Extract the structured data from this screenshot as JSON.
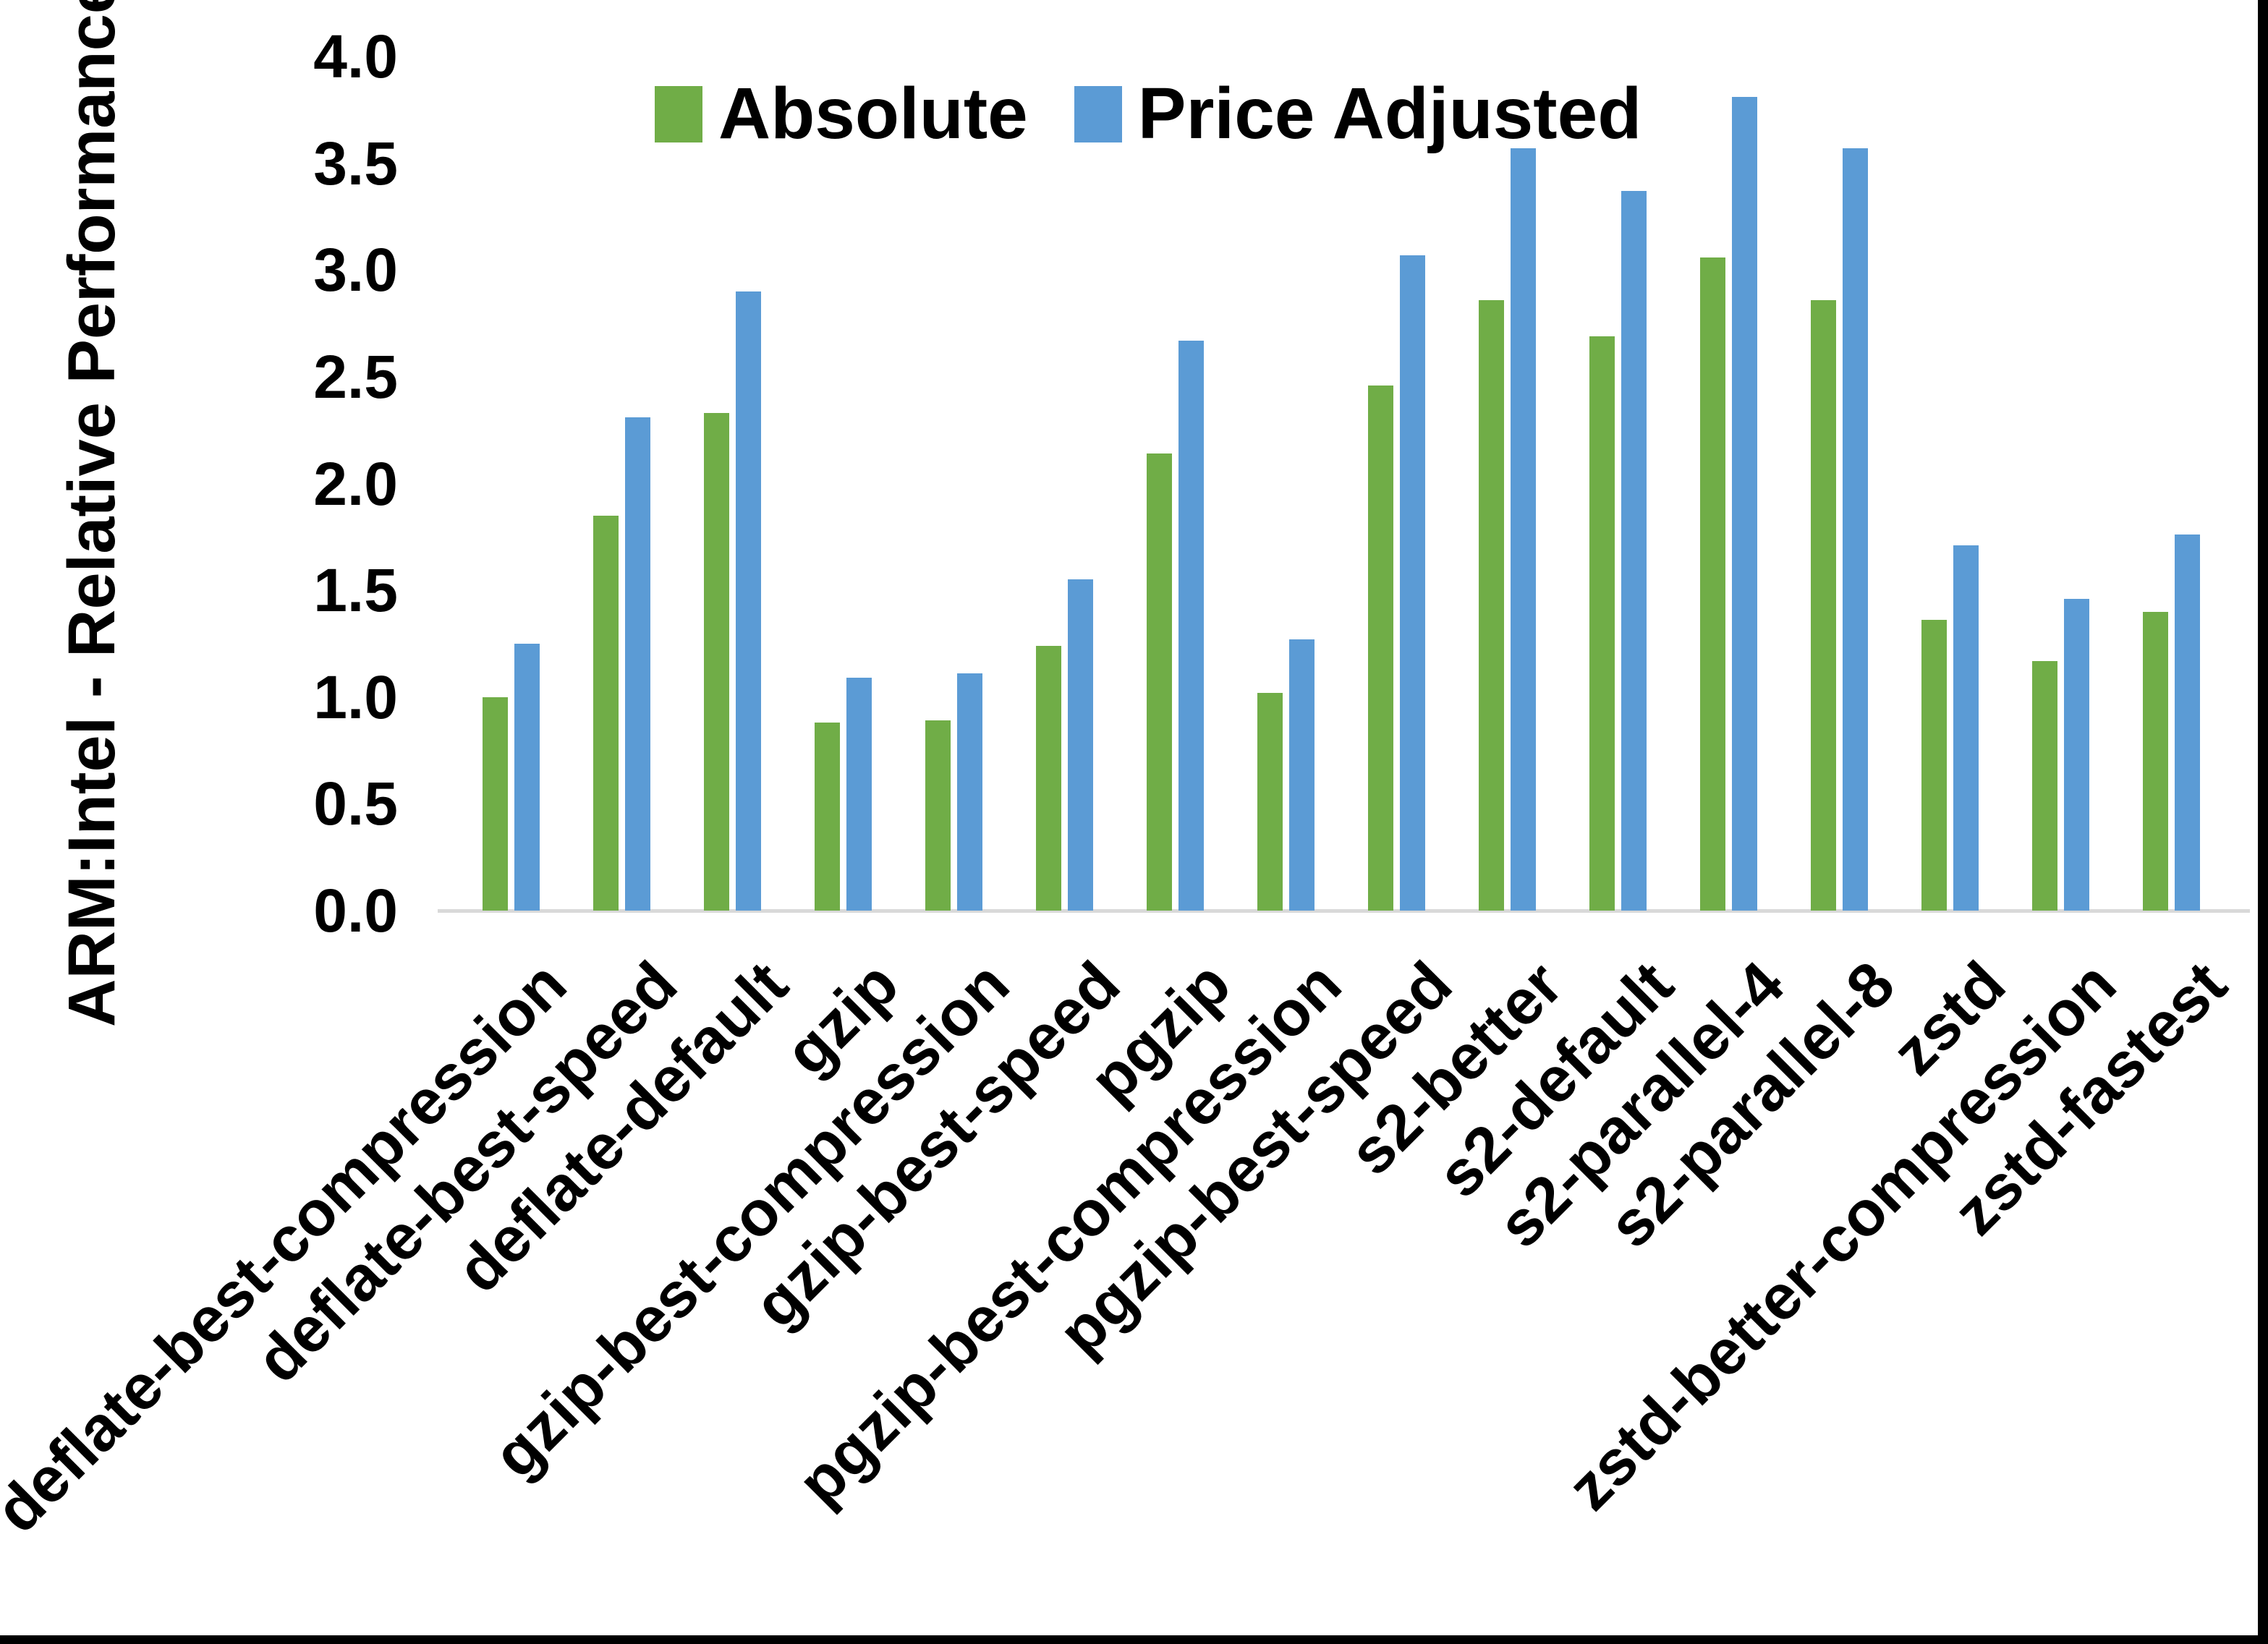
{
  "y_axis": {
    "title": "ARM:Intel - Relative Performance",
    "tick_labels": [
      "0.0",
      "0.5",
      "1.0",
      "1.5",
      "2.0",
      "2.5",
      "3.0",
      "3.5",
      "4.0"
    ],
    "min": 0,
    "max": 4
  },
  "legend": {
    "items": [
      {
        "name": "Absolute",
        "color": "#70AD47"
      },
      {
        "name": "Price Adjusted",
        "color": "#5B9BD5"
      }
    ]
  },
  "colors": {
    "absolute_green": "#70AD47",
    "price_adjusted_blue": "#5B9BD5",
    "axis_line_gray": "#D9D9D9",
    "frame_black": "#000000"
  },
  "chart_data": {
    "type": "bar",
    "title": "",
    "xlabel": "",
    "ylabel": "ARM:Intel - Relative Performance",
    "ylim": [
      0,
      4
    ],
    "ytick_step": 0.5,
    "grid": false,
    "legend_position": "top-center",
    "categories": [
      "deflate-best-compression",
      "deflate-best-speed",
      "deflate-default",
      "gzip",
      "gzip-best-compression",
      "gzip-best-speed",
      "pgzip",
      "pgzip-best-compression",
      "pgzip-best-speed",
      "s2-better",
      "s2-default",
      "s2-parallel-4",
      "s2-parallel-8",
      "zstd",
      "zstd-better-compression",
      "zstd-fastest"
    ],
    "series": [
      {
        "name": "Absolute",
        "color": "#70AD47",
        "values": [
          1.0,
          1.85,
          2.33,
          0.88,
          0.89,
          1.24,
          2.14,
          1.02,
          2.46,
          2.86,
          2.69,
          3.06,
          2.86,
          1.36,
          1.17,
          1.4
        ]
      },
      {
        "name": "Price Adjusted",
        "color": "#5B9BD5",
        "values": [
          1.25,
          2.31,
          2.9,
          1.09,
          1.11,
          1.55,
          2.67,
          1.27,
          3.07,
          3.57,
          3.37,
          3.81,
          3.57,
          1.71,
          1.46,
          1.76
        ]
      }
    ]
  }
}
